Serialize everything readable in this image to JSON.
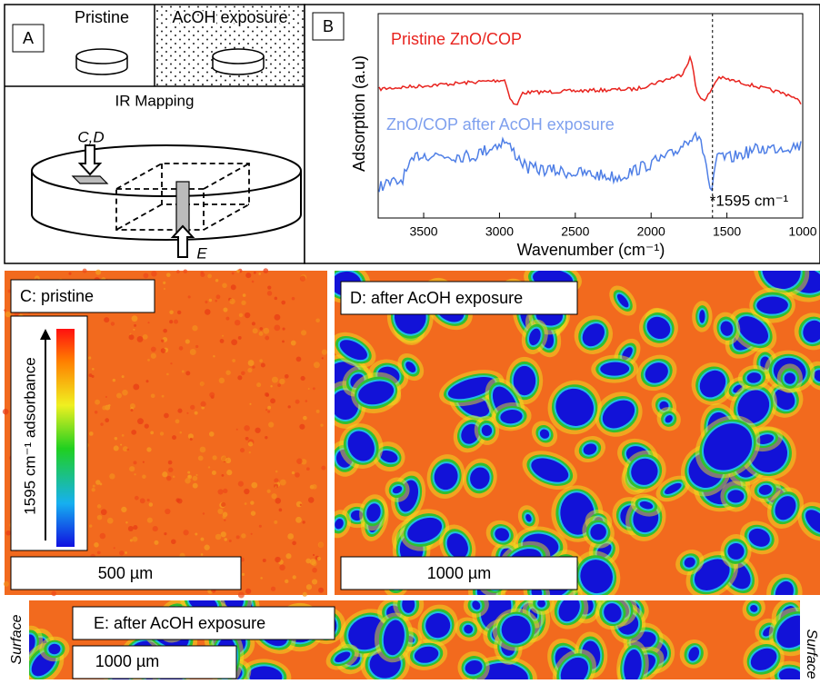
{
  "panel_a": {
    "label": "A",
    "pristine": "Pristine",
    "exposure": "AcOH exposure",
    "mapping": "IR Mapping",
    "arrow_cd": "C,D",
    "arrow_e": "E"
  },
  "panel_b": {
    "label": "B",
    "x_label": "Wavenumber (cm⁻¹)",
    "y_label": "Adsorption (a.u)",
    "xlim": [
      3800,
      1000
    ],
    "xticks": [
      3500,
      3000,
      2500,
      2000,
      1500,
      1000
    ],
    "series": [
      {
        "name": "Pristine ZnO/COP",
        "color": "#e8231e"
      },
      {
        "name": "ZnO/COP after AcOH exposure",
        "color": "#4f7fe6"
      }
    ],
    "marker": {
      "value": 1595,
      "label": "*1595 cm⁻¹"
    }
  },
  "panel_c": {
    "label": "C: pristine",
    "colorbar": "1595 cm⁻¹ adsorbance",
    "scale": "500 µm"
  },
  "panel_d": {
    "label": "D: after AcOH exposure",
    "scale": "1000 µm"
  },
  "panel_e": {
    "label": "E: after AcOH exposure",
    "scale": "1000 µm",
    "side_left": "Surface",
    "side_right": "Surface"
  }
}
